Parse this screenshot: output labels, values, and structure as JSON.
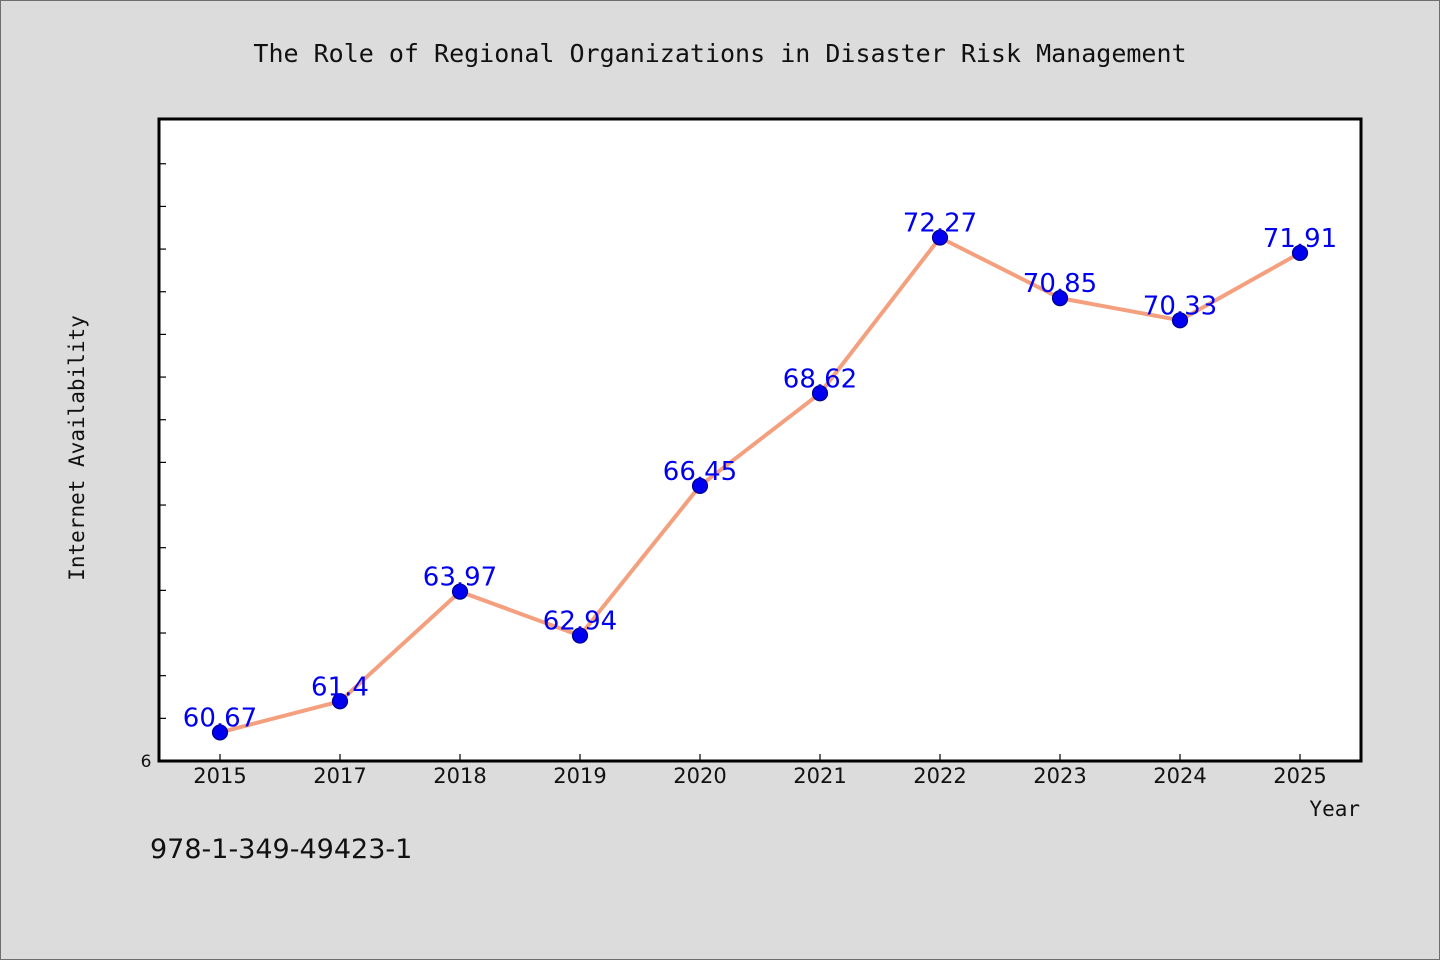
{
  "chart_data": {
    "type": "line",
    "title": "The Role of Regional Organizations in Disaster Risk Management",
    "xlabel": "Year",
    "ylabel": "Internet Availability",
    "categories": [
      "2015",
      "2017",
      "2018",
      "2019",
      "2020",
      "2021",
      "2022",
      "2023",
      "2024",
      "2025"
    ],
    "series": [
      {
        "values": [
          60.67,
          61.4,
          63.97,
          62.94,
          66.45,
          68.62,
          72.27,
          70.85,
          70.33,
          71.91
        ],
        "labels": [
          "60.67",
          "61.4",
          "63.97",
          "62.94",
          "66.45",
          "68.62",
          "72.27",
          "70.85",
          "70.33",
          "71.91"
        ]
      }
    ],
    "ylim": [
      60,
      75
    ],
    "y_tick_label": "6",
    "grid": false,
    "colors": {
      "line": "#f4a07f",
      "marker": "#0000ee",
      "marker_edge": "#00008b",
      "data_label": "#0000ee"
    }
  },
  "footer": {
    "isbn": "978-1-349-49423-1"
  }
}
